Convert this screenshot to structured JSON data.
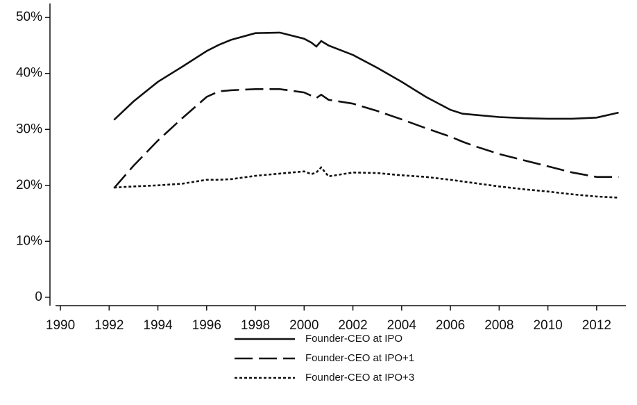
{
  "chart_data": {
    "type": "line",
    "x": [
      1992.2,
      1993,
      1994,
      1995,
      1996,
      1996.5,
      1997,
      1998,
      1999,
      2000,
      2000.3,
      2000.5,
      2000.7,
      2001,
      2002,
      2003,
      2004,
      2005,
      2006,
      2006.5,
      2007,
      2008,
      2009,
      2010,
      2011,
      2012,
      2012.9
    ],
    "series": [
      {
        "name": "Founder-CEO at IPO",
        "color": "#111111",
        "line_style": "solid",
        "values": [
          31.7,
          35,
          38.5,
          41.2,
          44,
          45.1,
          46,
          47.2,
          47.3,
          46.2,
          45.5,
          44.8,
          45.8,
          45,
          43.3,
          41,
          38.5,
          35.8,
          33.5,
          32.8,
          32.6,
          32.2,
          32,
          31.9,
          31.9,
          32.1,
          33
        ]
      },
      {
        "name": "Founder-CEO at IPO+1",
        "color": "#111111",
        "line_style": "dashed",
        "values": [
          19.5,
          23.5,
          28,
          32,
          35.8,
          36.8,
          37,
          37.2,
          37.2,
          36.6,
          36,
          35.6,
          36.2,
          35.3,
          34.6,
          33.3,
          31.8,
          30.2,
          28.7,
          27.8,
          27,
          25.6,
          24.5,
          23.4,
          22.3,
          21.5,
          21.5
        ]
      },
      {
        "name": "Founder-CEO at IPO+3",
        "color": "#111111",
        "line_style": "dotted",
        "values": [
          19.6,
          19.8,
          20,
          20.3,
          21,
          21,
          21.1,
          21.7,
          22.1,
          22.5,
          22,
          22.3,
          23.2,
          21.6,
          22.3,
          22.2,
          21.8,
          21.5,
          21,
          20.7,
          20.4,
          19.8,
          19.3,
          18.9,
          18.4,
          18,
          17.8
        ]
      }
    ],
    "xlim": [
      1989.8,
      2013.2
    ],
    "xticks": [
      1990,
      1992,
      1994,
      1996,
      1998,
      2000,
      2002,
      2004,
      2006,
      2008,
      2010,
      2012
    ],
    "ylim": [
      -1.5,
      52.5
    ],
    "yticks": [
      0,
      {
        "value": 10,
        "label": "10%"
      },
      {
        "value": 20,
        "label": "20%"
      },
      {
        "value": 30,
        "label": "30%"
      },
      {
        "value": 40,
        "label": "40%"
      },
      {
        "value": 50,
        "label": "50%"
      }
    ],
    "legend": "bottom"
  }
}
